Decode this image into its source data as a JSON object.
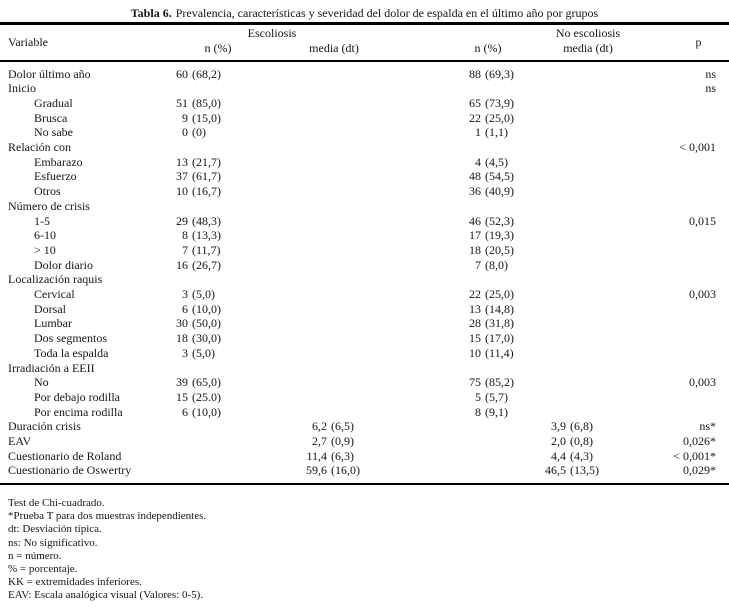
{
  "table": {
    "title_label": "Tabla 6.",
    "title_text": "Prevalencia, características y severidad del dolor de espalda en el último año por grupos",
    "header": {
      "variable": "Variable",
      "escoliosis": "Escoliosis",
      "no_escoliosis": "No escoliosis",
      "n_pct_left": "n (%)",
      "media_dt_left": "media (dt)",
      "n_pct_right": "n (%)",
      "media_dt_right": "media (dt)",
      "p": "p"
    },
    "rows": [
      {
        "label": "Dolor último año",
        "indent": false,
        "esc_n": {
          "num": "60",
          "par": "(68,2)"
        },
        "noesc_n": {
          "num": "88",
          "par": "(69,3)"
        },
        "p": "ns"
      },
      {
        "label": "Inicio",
        "indent": false,
        "p": "ns"
      },
      {
        "label": "Gradual",
        "indent": true,
        "esc_n": {
          "num": "51",
          "par": "(85,0)"
        },
        "noesc_n": {
          "num": "65",
          "par": "(73,9)"
        }
      },
      {
        "label": "Brusca",
        "indent": true,
        "esc_n": {
          "num": "9",
          "par": "(15,0)"
        },
        "noesc_n": {
          "num": "22",
          "par": "(25,0)"
        }
      },
      {
        "label": "No sabe",
        "indent": true,
        "esc_n": {
          "num": "0",
          "par": "(0)"
        },
        "noesc_n": {
          "num": "1",
          "par": "(1,1)"
        }
      },
      {
        "label": "Relación con",
        "indent": false,
        "p": "< 0,001"
      },
      {
        "label": "Embarazo",
        "indent": true,
        "esc_n": {
          "num": "13",
          "par": "(21,7)"
        },
        "noesc_n": {
          "num": "4",
          "par": "(4,5)"
        }
      },
      {
        "label": "Esfuerzo",
        "indent": true,
        "esc_n": {
          "num": "37",
          "par": "(61,7)"
        },
        "noesc_n": {
          "num": "48",
          "par": "(54,5)"
        }
      },
      {
        "label": "Otros",
        "indent": true,
        "esc_n": {
          "num": "10",
          "par": "(16,7)"
        },
        "noesc_n": {
          "num": "36",
          "par": "(40,9)"
        }
      },
      {
        "label": "Número de crisis",
        "indent": false
      },
      {
        "label": "1-5",
        "indent": true,
        "esc_n": {
          "num": "29",
          "par": "(48,3)"
        },
        "noesc_n": {
          "num": "46",
          "par": "(52,3)"
        },
        "p": "0,015"
      },
      {
        "label": "6-10",
        "indent": true,
        "esc_n": {
          "num": "8",
          "par": "(13,3)"
        },
        "noesc_n": {
          "num": "17",
          "par": "(19,3)"
        }
      },
      {
        "label": "> 10",
        "indent": true,
        "esc_n": {
          "num": "7",
          "par": "(11,7)"
        },
        "noesc_n": {
          "num": "18",
          "par": "(20,5)"
        }
      },
      {
        "label": "Dolor diario",
        "indent": true,
        "esc_n": {
          "num": "16",
          "par": "(26,7)"
        },
        "noesc_n": {
          "num": "7",
          "par": "(8,0)"
        }
      },
      {
        "label": "Localización raquis",
        "indent": false
      },
      {
        "label": "Cervical",
        "indent": true,
        "esc_n": {
          "num": "3",
          "par": "(5,0)"
        },
        "noesc_n": {
          "num": "22",
          "par": "(25,0)"
        },
        "p": "0,003"
      },
      {
        "label": "Dorsal",
        "indent": true,
        "esc_n": {
          "num": "6",
          "par": "(10,0)"
        },
        "noesc_n": {
          "num": "13",
          "par": "(14,8)"
        }
      },
      {
        "label": "Lumbar",
        "indent": true,
        "esc_n": {
          "num": "30",
          "par": "(50,0)"
        },
        "noesc_n": {
          "num": "28",
          "par": "(31,8)"
        }
      },
      {
        "label": "Dos segmentos",
        "indent": true,
        "esc_n": {
          "num": "18",
          "par": "(30,0)"
        },
        "noesc_n": {
          "num": "15",
          "par": "(17,0)"
        }
      },
      {
        "label": "Toda la espalda",
        "indent": true,
        "esc_n": {
          "num": "3",
          "par": "(5,0)"
        },
        "noesc_n": {
          "num": "10",
          "par": "(11,4)"
        }
      },
      {
        "label": "Irradiación a EEII",
        "indent": false
      },
      {
        "label": "No",
        "indent": true,
        "esc_n": {
          "num": "39",
          "par": "(65,0)"
        },
        "noesc_n": {
          "num": "75",
          "par": "(85,2)"
        },
        "p": "0,003"
      },
      {
        "label": "Por debajo rodilla",
        "indent": true,
        "esc_n": {
          "num": "15",
          "par": "(25.0)"
        },
        "noesc_n": {
          "num": "5",
          "par": "(5,7)"
        }
      },
      {
        "label": "Por encima rodilla",
        "indent": true,
        "esc_n": {
          "num": "6",
          "par": "(10,0)"
        },
        "noesc_n": {
          "num": "8",
          "par": "(9,1)"
        }
      },
      {
        "label": "Duración crisis",
        "indent": false,
        "esc_media": {
          "num": "6,2",
          "par": "(6,5)"
        },
        "noesc_media": {
          "num": "3,9",
          "par": "(6,8)"
        },
        "p": "ns*"
      },
      {
        "label": "EAV",
        "indent": false,
        "esc_media": {
          "num": "2,7",
          "par": "(0,9)"
        },
        "noesc_media": {
          "num": "2,0",
          "par": "(0,8)"
        },
        "p": "0,026*"
      },
      {
        "label": "Cuestionario de Roland",
        "indent": false,
        "esc_media": {
          "num": "11,4",
          "par": "(6,3)"
        },
        "noesc_media": {
          "num": "4,4",
          "par": "(4,3)"
        },
        "p": "< 0,001*"
      },
      {
        "label": "Cuestionario de Oswertry",
        "indent": false,
        "esc_media": {
          "num": "59,6",
          "par": "(16,0)"
        },
        "noesc_media": {
          "num": "46,5",
          "par": "(13,5)"
        },
        "p": "0,029*"
      }
    ],
    "footnotes": [
      "Test de Chi-cuadrado.",
      "*Prueba T para dos muestras independientes.",
      "dt: Desviación típica.",
      "ns: No significativo.",
      "n = número.",
      "% = porcentaje.",
      "KK = extremidades inferiores.",
      "EAV: Escala analógica visual (Valores: 0-5)."
    ]
  }
}
